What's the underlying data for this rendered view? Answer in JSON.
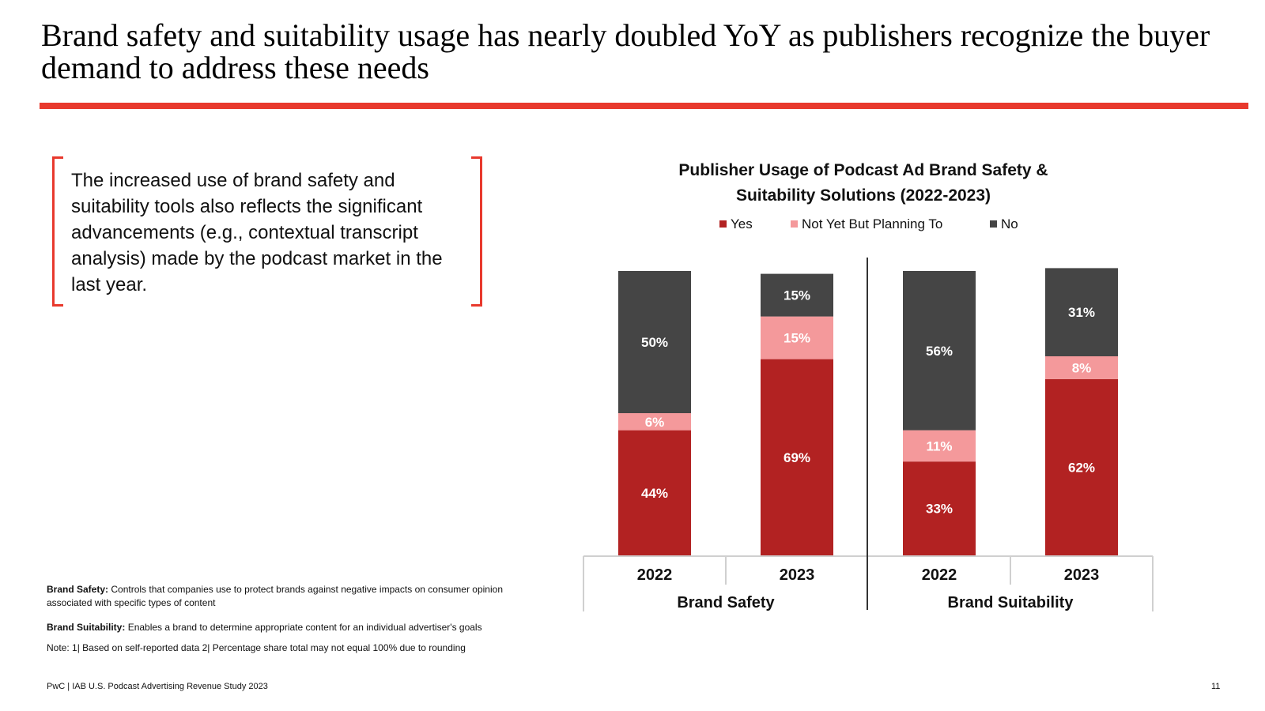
{
  "slide": {
    "title": "Brand safety and suitability usage has nearly doubled YoY as publishers recognize the buyer demand to address these needs",
    "callout": "The increased use of brand safety and suitability tools also reflects the significant advancements (e.g., contextual transcript analysis) made by the podcast market in the last year.",
    "definitions": {
      "brand_safety_term": "Brand Safety:",
      "brand_safety_text": "Controls that companies use to protect brands against negative impacts on consumer opinion associated with specific types of content",
      "brand_suitability_term": "Brand Suitability:",
      "brand_suitability_text": "Enables a brand to determine appropriate content for an individual advertiser's goals"
    },
    "note": "Note: 1| Based on self-reported data 2| Percentage share total may not equal 100% due to rounding",
    "source": "PwC | IAB U.S. Podcast Advertising Revenue Study 2023",
    "page_number": "11"
  },
  "colors": {
    "accent": "#e8392d",
    "yes": "#b22222",
    "planning": "#f4999b",
    "no": "#454545"
  },
  "chart_data": {
    "type": "bar",
    "stacked": true,
    "title_lines": [
      "Publisher Usage of Podcast Ad Brand Safety &",
      "Suitability Solutions (2022-2023)"
    ],
    "legend": [
      "Yes",
      "Not Yet But Planning To",
      "No"
    ],
    "legend_position": "top-center",
    "groups": [
      {
        "name": "Brand Safety",
        "categories": [
          "2022",
          "2023"
        ]
      },
      {
        "name": "Brand Suitability",
        "categories": [
          "2022",
          "2023"
        ]
      }
    ],
    "series": [
      {
        "name": "Yes",
        "values": [
          44,
          69,
          33,
          62
        ],
        "labels": [
          "44%",
          "69%",
          "33%",
          "62%"
        ]
      },
      {
        "name": "Not Yet But Planning To",
        "values": [
          6,
          15,
          11,
          8
        ],
        "labels": [
          "6%",
          "15%",
          "11%",
          "8%"
        ]
      },
      {
        "name": "No",
        "values": [
          50,
          15,
          56,
          31
        ],
        "labels": [
          "50%",
          "15%",
          "56%",
          "31%"
        ]
      }
    ],
    "ylim": [
      0,
      100
    ],
    "grid": false
  }
}
